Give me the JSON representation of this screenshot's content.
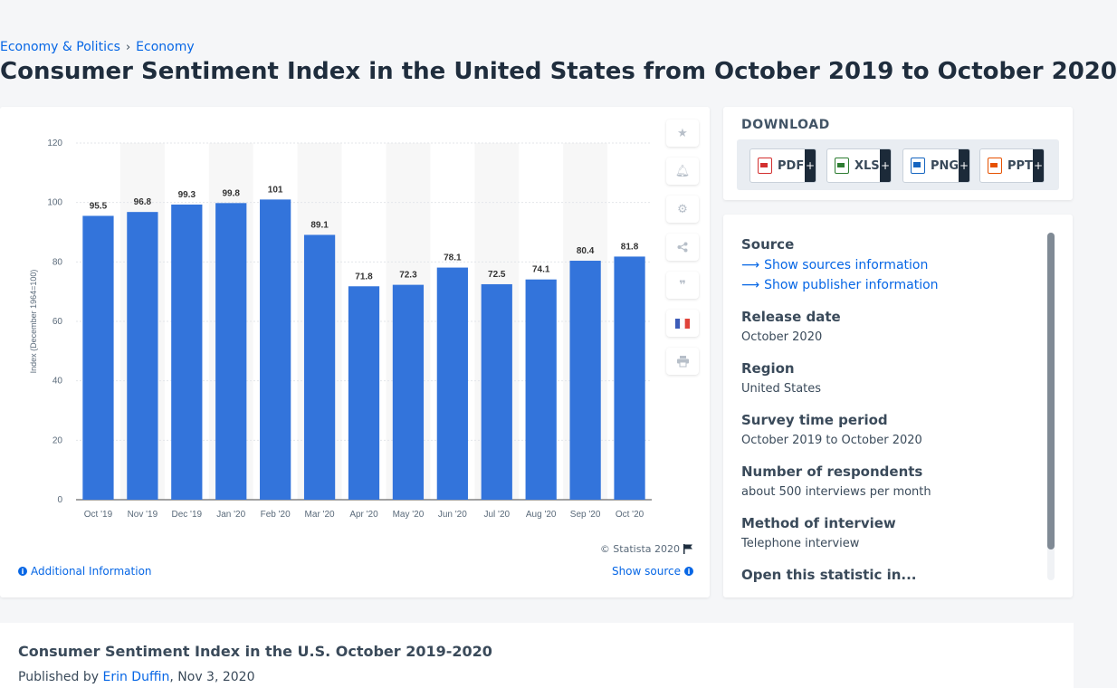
{
  "breadcrumb": {
    "item1": "Economy & Politics",
    "separator": "›",
    "item2": "Economy"
  },
  "page_title": "Consumer Sentiment Index in the United States from October 2019 to October 2020",
  "chart_tools": [
    "star-icon",
    "bell-icon",
    "gear-icon",
    "share-icon",
    "quote-icon",
    "french-flag-icon",
    "print-icon"
  ],
  "chart_footer": {
    "copyright": "© Statista 2020",
    "additional_info": "Additional Information",
    "show_source": "Show source"
  },
  "download": {
    "title": "DOWNLOAD",
    "buttons": [
      {
        "label": "PDF",
        "plus": "+",
        "color": "#d32f2f"
      },
      {
        "label": "XLS",
        "plus": "+",
        "color": "#2e7d32"
      },
      {
        "label": "PNG",
        "plus": "+",
        "color": "#1565c0"
      },
      {
        "label": "PPT",
        "plus": "+",
        "color": "#e65100"
      }
    ]
  },
  "details": {
    "source_label": "Source",
    "show_sources": "Show sources information",
    "show_publisher": "Show publisher information",
    "release_date_label": "Release date",
    "release_date": "October 2020",
    "region_label": "Region",
    "region": "United States",
    "survey_period_label": "Survey time period",
    "survey_period": "October 2019 to October 2020",
    "respondents_label": "Number of respondents",
    "respondents": "about 500 interviews per month",
    "method_label": "Method of interview",
    "method": "Telephone interview",
    "open_label": "Open this statistic in..."
  },
  "bottom": {
    "title": "Consumer Sentiment Index in the U.S. October 2019-2020",
    "published_prefix": "Published by ",
    "author": "Erin Duffin",
    "date": ", Nov 3, 2020"
  },
  "colors": {
    "bar": "#3374db",
    "accent": "#0666e5",
    "stripe": "#f7f7f7"
  },
  "chart_data": {
    "type": "bar",
    "categories": [
      "Oct '19",
      "Nov '19",
      "Dec '19",
      "Jan '20",
      "Feb '20",
      "Mar '20",
      "Apr '20",
      "May '20",
      "Jun '20",
      "Jul '20",
      "Aug '20",
      "Sep '20",
      "Oct '20"
    ],
    "values": [
      95.5,
      96.8,
      99.3,
      99.8,
      101,
      89.1,
      71.8,
      72.3,
      78.1,
      72.5,
      74.1,
      80.4,
      81.8
    ],
    "value_labels": [
      "95.5",
      "96.8",
      "99.3",
      "99.8",
      "101",
      "89.1",
      "71.8",
      "72.3",
      "78.1",
      "72.5",
      "74.1",
      "80.4",
      "81.8"
    ],
    "ylabel": "Index (December 1964=100)",
    "xlabel": "",
    "ylim": [
      0,
      120
    ],
    "yticks": [
      0,
      20,
      40,
      60,
      80,
      100,
      120
    ],
    "grid": true,
    "legend": "none"
  }
}
